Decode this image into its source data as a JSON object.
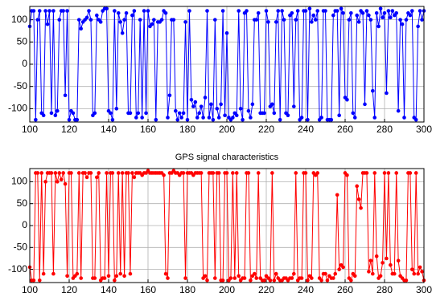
{
  "chart_data": [
    {
      "type": "line",
      "color": "#0000ff",
      "grid": true,
      "xlim": [
        100,
        300
      ],
      "ylim": [
        -130,
        130
      ],
      "xticks": [
        100,
        120,
        140,
        160,
        180,
        200,
        220,
        240,
        260,
        280,
        300
      ],
      "yticks": [
        -100,
        -50,
        0,
        50,
        100
      ],
      "x": [
        100,
        101,
        102,
        103,
        104,
        105,
        106,
        107,
        108,
        109,
        110,
        111,
        112,
        113,
        114,
        115,
        116,
        117,
        118,
        119,
        120,
        121,
        122,
        123,
        124,
        125,
        126,
        127,
        128,
        129,
        130,
        131,
        132,
        133,
        134,
        135,
        136,
        137,
        138,
        139,
        140,
        141,
        142,
        143,
        144,
        145,
        146,
        147,
        148,
        149,
        150,
        151,
        152,
        153,
        154,
        155,
        156,
        157,
        158,
        159,
        160,
        161,
        162,
        163,
        164,
        165,
        166,
        167,
        168,
        169,
        170,
        171,
        172,
        173,
        174,
        175,
        176,
        177,
        178,
        179,
        180,
        181,
        182,
        183,
        184,
        185,
        186,
        187,
        188,
        189,
        190,
        191,
        192,
        193,
        194,
        195,
        196,
        197,
        198,
        199,
        200,
        201,
        202,
        203,
        204,
        205,
        206,
        207,
        208,
        209,
        210,
        211,
        212,
        213,
        214,
        215,
        216,
        217,
        218,
        219,
        220,
        221,
        222,
        223,
        224,
        225,
        226,
        227,
        228,
        229,
        230,
        231,
        232,
        233,
        234,
        235,
        236,
        237,
        238,
        239,
        240,
        241,
        242,
        243,
        244,
        245,
        246,
        247,
        248,
        249,
        250,
        251,
        252,
        253,
        254,
        255,
        256,
        257,
        258,
        259,
        260,
        261,
        262,
        263,
        264,
        265,
        266,
        267,
        268,
        269,
        270,
        271,
        272,
        273,
        274,
        275,
        276,
        277,
        278,
        279,
        280,
        281,
        282,
        283,
        284,
        285,
        286,
        287,
        288,
        289,
        290,
        291,
        292,
        293,
        294,
        295,
        296,
        297,
        298,
        299,
        300
      ],
      "values": [
        85,
        120,
        120,
        -125,
        100,
        120,
        -110,
        -115,
        120,
        90,
        120,
        -110,
        120,
        -115,
        -105,
        100,
        120,
        120,
        -70,
        120,
        -125,
        -105,
        -110,
        -125,
        -125,
        100,
        80,
        95,
        100,
        105,
        120,
        100,
        -115,
        -110,
        110,
        100,
        95,
        120,
        125,
        125,
        -105,
        -110,
        -125,
        120,
        -100,
        115,
        95,
        70,
        100,
        115,
        -110,
        -110,
        110,
        120,
        -120,
        -110,
        100,
        -120,
        120,
        -110,
        120,
        85,
        90,
        100,
        -125,
        95,
        95,
        100,
        120,
        115,
        -120,
        -70,
        100,
        100,
        -105,
        -125,
        -110,
        -120,
        -110,
        95,
        -125,
        120,
        -80,
        -95,
        -85,
        -120,
        -110,
        -95,
        -120,
        -75,
        120,
        -120,
        -90,
        -125,
        100,
        -100,
        -120,
        -90,
        120,
        -115,
        70,
        -120,
        -125,
        -120,
        -110,
        -115,
        120,
        -100,
        -125,
        115,
        120,
        -105,
        -120,
        -90,
        100,
        100,
        115,
        -110,
        -110,
        -110,
        120,
        95,
        -95,
        -90,
        -110,
        95,
        120,
        -125,
        120,
        100,
        -110,
        -115,
        110,
        115,
        -95,
        100,
        120,
        -125,
        -120,
        120,
        120,
        -125,
        125,
        95,
        110,
        100,
        120,
        -125,
        -120,
        120,
        120,
        -125,
        -125,
        -125,
        110,
        120,
        120,
        -115,
        125,
        115,
        -75,
        -80,
        100,
        115,
        -110,
        -120,
        110,
        95,
        120,
        115,
        -90,
        120,
        110,
        100,
        -60,
        -120,
        115,
        85,
        125,
        105,
        115,
        -65,
        120,
        105,
        120,
        110,
        115,
        -105,
        100,
        90,
        -120,
        100,
        115,
        110,
        120,
        -120,
        -125,
        85,
        120,
        100,
        120
      ]
    },
    {
      "type": "line",
      "title": "GPS signal characteristics",
      "color": "#ff0000",
      "grid": true,
      "xlim": [
        100,
        300
      ],
      "ylim": [
        -130,
        130
      ],
      "xticks": [
        100,
        120,
        140,
        160,
        180,
        200,
        220,
        240,
        260,
        280,
        300
      ],
      "yticks": [
        -100,
        -50,
        0,
        50,
        100
      ],
      "x": [
        100,
        101,
        102,
        103,
        104,
        105,
        106,
        107,
        108,
        109,
        110,
        111,
        112,
        113,
        114,
        115,
        116,
        117,
        118,
        119,
        120,
        121,
        122,
        123,
        124,
        125,
        126,
        127,
        128,
        129,
        130,
        131,
        132,
        133,
        134,
        135,
        136,
        137,
        138,
        139,
        140,
        141,
        142,
        143,
        144,
        145,
        146,
        147,
        148,
        149,
        150,
        151,
        152,
        153,
        154,
        155,
        156,
        157,
        158,
        159,
        160,
        161,
        162,
        163,
        164,
        165,
        166,
        167,
        168,
        169,
        170,
        171,
        172,
        173,
        174,
        175,
        176,
        177,
        178,
        179,
        180,
        181,
        182,
        183,
        184,
        185,
        186,
        187,
        188,
        189,
        190,
        191,
        192,
        193,
        194,
        195,
        196,
        197,
        198,
        199,
        200,
        201,
        202,
        203,
        204,
        205,
        206,
        207,
        208,
        209,
        210,
        211,
        212,
        213,
        214,
        215,
        216,
        217,
        218,
        219,
        220,
        221,
        222,
        223,
        224,
        225,
        226,
        227,
        228,
        229,
        230,
        231,
        232,
        233,
        234,
        235,
        236,
        237,
        238,
        239,
        240,
        241,
        242,
        243,
        244,
        245,
        246,
        247,
        248,
        249,
        250,
        251,
        252,
        253,
        254,
        255,
        256,
        257,
        258,
        259,
        260,
        261,
        262,
        263,
        264,
        265,
        266,
        267,
        268,
        269,
        270,
        271,
        272,
        273,
        274,
        275,
        276,
        277,
        278,
        279,
        280,
        281,
        282,
        283,
        284,
        285,
        286,
        287,
        288,
        289,
        290,
        291,
        292,
        293,
        294,
        295,
        296,
        297,
        298,
        299,
        300
      ],
      "values": [
        -95,
        -125,
        -125,
        120,
        120,
        -125,
        120,
        -110,
        100,
        120,
        120,
        120,
        -110,
        120,
        100,
        120,
        105,
        120,
        95,
        -115,
        120,
        120,
        -120,
        -115,
        -110,
        120,
        -120,
        120,
        120,
        110,
        120,
        120,
        -120,
        -120,
        110,
        120,
        -125,
        -120,
        -120,
        120,
        -115,
        120,
        120,
        -125,
        -115,
        120,
        -110,
        120,
        -115,
        120,
        120,
        -110,
        120,
        110,
        120,
        120,
        120,
        115,
        120,
        120,
        125,
        120,
        120,
        120,
        120,
        120,
        120,
        120,
        115,
        -110,
        -120,
        120,
        120,
        125,
        120,
        120,
        115,
        120,
        120,
        -120,
        120,
        120,
        120,
        115,
        120,
        120,
        120,
        120,
        -120,
        -115,
        -125,
        120,
        120,
        120,
        -120,
        120,
        120,
        -125,
        -125,
        120,
        120,
        -125,
        -120,
        120,
        -120,
        120,
        -115,
        -125,
        -120,
        -120,
        120,
        120,
        -125,
        -115,
        -110,
        -120,
        120,
        -120,
        -125,
        -125,
        -115,
        -120,
        -125,
        120,
        -125,
        -110,
        -120,
        -125,
        -125,
        -120,
        -120,
        -125,
        -120,
        -120,
        -110,
        120,
        -125,
        -120,
        -120,
        120,
        120,
        -125,
        -115,
        -120,
        120,
        115,
        120,
        -120,
        -125,
        -110,
        -110,
        -125,
        -115,
        -120,
        -120,
        -110,
        70,
        -100,
        -90,
        -95,
        120,
        115,
        -120,
        -125,
        -110,
        -115,
        90,
        60,
        40,
        120,
        120,
        120,
        -105,
        -80,
        -110,
        120,
        -70,
        -120,
        -115,
        -85,
        120,
        -75,
        120,
        -90,
        -110,
        -110,
        120,
        -80,
        -115,
        -120,
        -125,
        -125,
        120,
        120,
        -100,
        -110,
        120,
        -110,
        -95,
        -105,
        -125
      ]
    }
  ]
}
